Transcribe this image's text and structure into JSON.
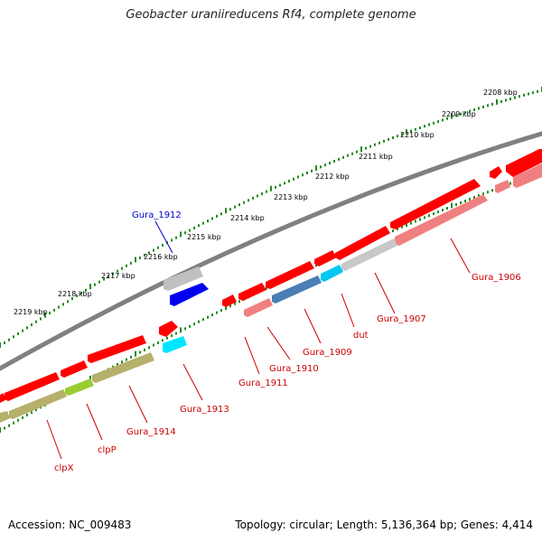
{
  "title": "Geobacter uraniireducens Rf4, complete genome",
  "footer": {
    "accession": "Accession: NC_009483",
    "summary": "Topology: circular; Length: 5,136,364 bp; Genes: 4,414"
  },
  "ticks": [
    "2208 kbp",
    "2209 kbp",
    "2210 kbp",
    "2211 kbp",
    "2212 kbp",
    "2213 kbp",
    "2214 kbp",
    "2215 kbp",
    "2216 kbp",
    "2217 kbp",
    "2218 kbp",
    "2219 kbp"
  ],
  "genes": [
    {
      "name": "Gura_1906",
      "color": "#cc0000"
    },
    {
      "name": "Gura_1907",
      "color": "#cc0000"
    },
    {
      "name": "dut",
      "color": "#cc0000"
    },
    {
      "name": "Gura_1909",
      "color": "#cc0000"
    },
    {
      "name": "Gura_1910",
      "color": "#cc0000"
    },
    {
      "name": "Gura_1911",
      "color": "#cc0000"
    },
    {
      "name": "Gura_1912",
      "color": "#0000cc"
    },
    {
      "name": "Gura_1913",
      "color": "#cc0000"
    },
    {
      "name": "Gura_1914",
      "color": "#cc0000"
    },
    {
      "name": "clpP",
      "color": "#cc0000"
    },
    {
      "name": "clpX",
      "color": "#cc0000"
    }
  ],
  "colors": {
    "cds": "#ff0000",
    "rna_track": "#f08080",
    "backbone": "#808080",
    "tick": "#228b22",
    "olive": "#b5b06a",
    "steel": "#4a7fb5",
    "cyan": "#00e5ff",
    "blue": "#0000ff",
    "silver": "#c8c8c8",
    "lime": "#9acd32"
  }
}
